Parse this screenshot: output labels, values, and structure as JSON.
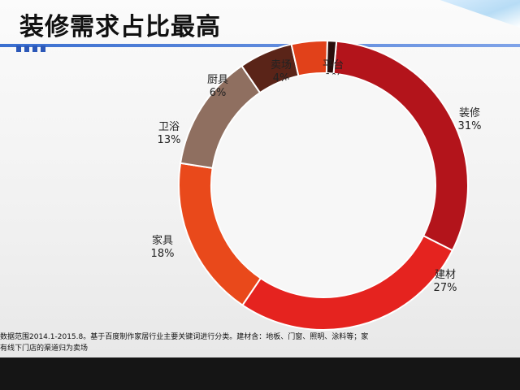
{
  "title": "装修需求占比最高",
  "footnote": {
    "line1": "数据范围2014.1-2015.8。基于百度制作家居行业主要关键词进行分类。建材含：地板、门窗、照明、涂料等；家",
    "line2": "有线下门店的渠道归为卖场"
  },
  "chart_data": {
    "type": "pie",
    "donut": true,
    "title": "装修需求占比最高",
    "slices": [
      {
        "label": "装修",
        "value": 31,
        "value_label": "31%",
        "color": "#b3141b"
      },
      {
        "label": "建材",
        "value": 27,
        "value_label": "27%",
        "color": "#e5231f"
      },
      {
        "label": "家具",
        "value": 18,
        "value_label": "18%",
        "color": "#e9491b"
      },
      {
        "label": "卫浴",
        "value": 13,
        "value_label": "13%",
        "color": "#8f6f60"
      },
      {
        "label": "厨具",
        "value": 6,
        "value_label": "6%",
        "color": "#5a2418"
      },
      {
        "label": "卖场",
        "value": 4,
        "value_label": "4%",
        "color": "#e1411a"
      },
      {
        "label": "平台",
        "value": 1,
        "value_label": "1%",
        "color": "#2a0e0c"
      }
    ]
  }
}
